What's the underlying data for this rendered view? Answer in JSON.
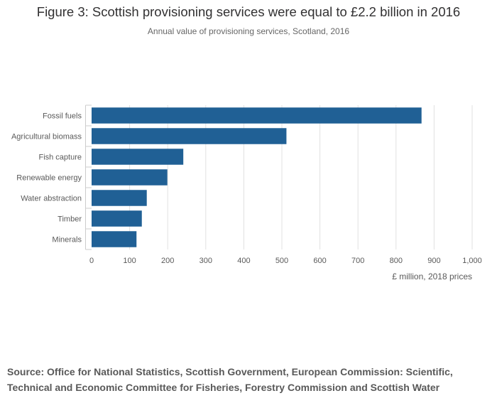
{
  "title": "Figure 3: Scottish provisioning services were equal to £2.2 billion in 2016",
  "subtitle": "Annual value of provisioning services, Scotland, 2016",
  "source": "Source: Office for National Statistics, Scottish Government, European Commission: Scientific, Technical and Economic Committee for Fisheries, Forestry Commission and Scottish Water",
  "colors": {
    "bar": "#206095",
    "grid": "#e0e0e0",
    "axis": "#cccccc",
    "text": "#595959"
  },
  "chart_data": {
    "type": "bar",
    "orientation": "horizontal",
    "title": "Figure 3: Scottish provisioning services were equal to £2.2 billion in 2016",
    "subtitle": "Annual value of provisioning services, Scotland, 2016",
    "categories": [
      "Fossil fuels",
      "Agricultural biomass",
      "Fish capture",
      "Renewable energy",
      "Water abstraction",
      "Timber",
      "Minerals"
    ],
    "values": [
      867,
      512,
      241,
      199,
      145,
      132,
      118
    ],
    "xlabel": "£ million, 2018 prices",
    "ylabel": "",
    "xlim": [
      0,
      1000
    ],
    "xticks": [
      0,
      100,
      200,
      300,
      400,
      500,
      600,
      700,
      800,
      900,
      1000
    ],
    "xtick_labels": [
      "0",
      "100",
      "200",
      "300",
      "400",
      "500",
      "600",
      "700",
      "800",
      "900",
      "1,000"
    ],
    "grid": true
  }
}
